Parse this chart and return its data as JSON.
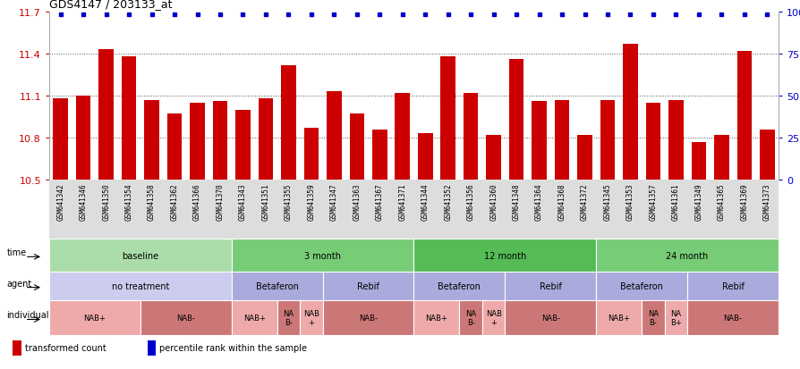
{
  "title": "GDS4147 / 203133_at",
  "samples": [
    "GSM641342",
    "GSM641346",
    "GSM641350",
    "GSM641354",
    "GSM641358",
    "GSM641362",
    "GSM641366",
    "GSM641370",
    "GSM641343",
    "GSM641351",
    "GSM641355",
    "GSM641359",
    "GSM641347",
    "GSM641363",
    "GSM641367",
    "GSM641371",
    "GSM641344",
    "GSM641352",
    "GSM641356",
    "GSM641360",
    "GSM641348",
    "GSM641364",
    "GSM641368",
    "GSM641372",
    "GSM641345",
    "GSM641353",
    "GSM641357",
    "GSM641361",
    "GSM641349",
    "GSM641365",
    "GSM641369",
    "GSM641373"
  ],
  "values": [
    11.08,
    11.1,
    11.43,
    11.38,
    11.07,
    10.97,
    11.05,
    11.06,
    11.0,
    11.08,
    11.32,
    10.87,
    11.13,
    10.97,
    10.86,
    11.12,
    10.83,
    11.38,
    11.12,
    10.82,
    11.36,
    11.06,
    11.07,
    10.82,
    11.07,
    11.47,
    11.05,
    11.07,
    10.77,
    10.82,
    11.42,
    10.86
  ],
  "ymin": 10.5,
  "ymax": 11.7,
  "yticks": [
    10.5,
    10.8,
    11.1,
    11.4,
    11.7
  ],
  "ytick_labels": [
    "10.5",
    "10.8",
    "11.1",
    "11.4",
    "11.7"
  ],
  "right_yticks": [
    0,
    25,
    50,
    75,
    100
  ],
  "right_ytick_labels": [
    "0",
    "25",
    "50",
    "75",
    "100%"
  ],
  "bar_color": "#cc0000",
  "dot_color": "#0000cc",
  "time_row": {
    "label": "time",
    "segments": [
      {
        "text": "baseline",
        "start": 0,
        "end": 8,
        "color": "#aaddaa"
      },
      {
        "text": "3 month",
        "start": 8,
        "end": 16,
        "color": "#77cc77"
      },
      {
        "text": "12 month",
        "start": 16,
        "end": 24,
        "color": "#55bb55"
      },
      {
        "text": "24 month",
        "start": 24,
        "end": 32,
        "color": "#77cc77"
      }
    ]
  },
  "agent_row": {
    "label": "agent",
    "segments": [
      {
        "text": "no treatment",
        "start": 0,
        "end": 8,
        "color": "#ccccee"
      },
      {
        "text": "Betaferon",
        "start": 8,
        "end": 12,
        "color": "#aaaadd"
      },
      {
        "text": "Rebif",
        "start": 12,
        "end": 16,
        "color": "#aaaadd"
      },
      {
        "text": "Betaferon",
        "start": 16,
        "end": 20,
        "color": "#aaaadd"
      },
      {
        "text": "Rebif",
        "start": 20,
        "end": 24,
        "color": "#aaaadd"
      },
      {
        "text": "Betaferon",
        "start": 24,
        "end": 28,
        "color": "#aaaadd"
      },
      {
        "text": "Rebif",
        "start": 28,
        "end": 32,
        "color": "#aaaadd"
      }
    ]
  },
  "individual_row": {
    "label": "individual",
    "segments": [
      {
        "text": "NAB+",
        "start": 0,
        "end": 4,
        "color": "#eeaaaa"
      },
      {
        "text": "NAB-",
        "start": 4,
        "end": 8,
        "color": "#cc7777"
      },
      {
        "text": "NAB+",
        "start": 8,
        "end": 10,
        "color": "#eeaaaa"
      },
      {
        "text": "NA\nB-",
        "start": 10,
        "end": 11,
        "color": "#cc7777"
      },
      {
        "text": "NAB\n+",
        "start": 11,
        "end": 12,
        "color": "#eeaaaa"
      },
      {
        "text": "NAB-",
        "start": 12,
        "end": 16,
        "color": "#cc7777"
      },
      {
        "text": "NAB+",
        "start": 16,
        "end": 18,
        "color": "#eeaaaa"
      },
      {
        "text": "NA\nB-",
        "start": 18,
        "end": 19,
        "color": "#cc7777"
      },
      {
        "text": "NAB\n+",
        "start": 19,
        "end": 20,
        "color": "#eeaaaa"
      },
      {
        "text": "NAB-",
        "start": 20,
        "end": 24,
        "color": "#cc7777"
      },
      {
        "text": "NAB+",
        "start": 24,
        "end": 26,
        "color": "#eeaaaa"
      },
      {
        "text": "NA\nB-",
        "start": 26,
        "end": 27,
        "color": "#cc7777"
      },
      {
        "text": "NA\nB+",
        "start": 27,
        "end": 28,
        "color": "#eeaaaa"
      },
      {
        "text": "NAB-",
        "start": 28,
        "end": 32,
        "color": "#cc7777"
      }
    ]
  },
  "legend_items": [
    {
      "color": "#cc0000",
      "label": "transformed count"
    },
    {
      "color": "#0000cc",
      "label": "percentile rank within the sample"
    }
  ]
}
